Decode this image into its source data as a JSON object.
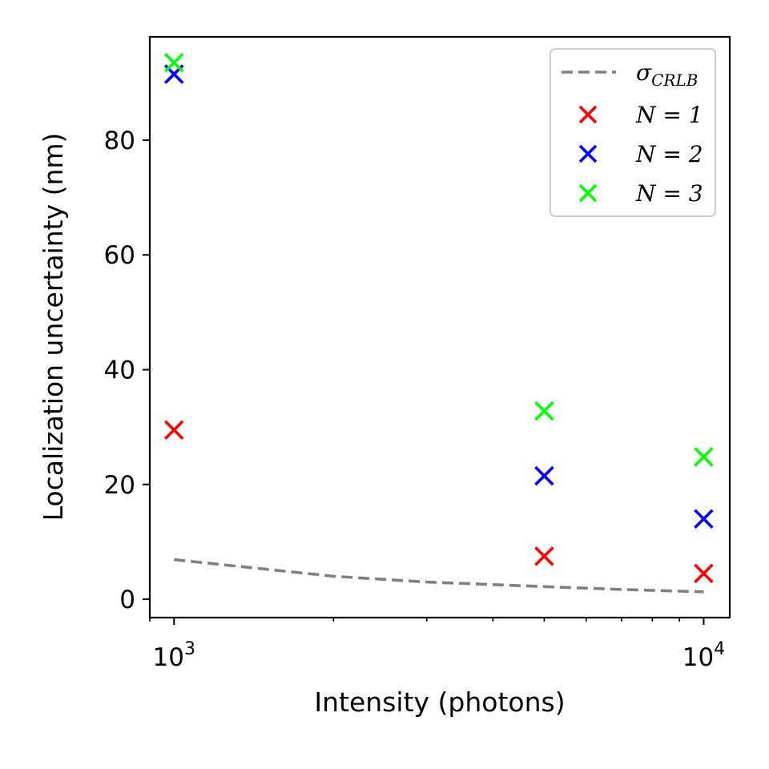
{
  "chart_data": {
    "type": "scatter",
    "xlabel": "Intensity (photons)",
    "ylabel": "Localization uncertainty (nm)",
    "x_scale": "log",
    "xlim": [
      900,
      11200
    ],
    "ylim": [
      -3.2,
      98
    ],
    "x_ticks": [
      {
        "value": 1000,
        "base": "10",
        "exp": "3"
      },
      {
        "value": 10000,
        "base": "10",
        "exp": "4"
      }
    ],
    "y_ticks": [
      {
        "value": 0,
        "label": "0"
      },
      {
        "value": 20,
        "label": "20"
      },
      {
        "value": 40,
        "label": "40"
      },
      {
        "value": 60,
        "label": "60"
      },
      {
        "value": 80,
        "label": "80"
      }
    ],
    "grid": false,
    "legend_position": "top-right",
    "curve": {
      "name": "σ",
      "name_sub": "CRLB",
      "color": "#808080",
      "style": "dashed",
      "x": [
        1000,
        2000,
        3000,
        5000,
        7000,
        10000
      ],
      "y": [
        6.9,
        4.0,
        3.0,
        2.2,
        1.7,
        1.3
      ]
    },
    "series": [
      {
        "name": "N = 1",
        "color": "#ff0000",
        "marker": "x",
        "x": [
          1000,
          5000,
          10000
        ],
        "y": [
          29.5,
          7.5,
          4.5
        ]
      },
      {
        "name": "N = 2",
        "color": "#0000ff",
        "marker": "x",
        "x": [
          1000,
          5000,
          10000
        ],
        "y": [
          91.5,
          21.5,
          14.0
        ]
      },
      {
        "name": "N = 3",
        "color": "#00ff00",
        "marker": "x",
        "x": [
          1000,
          5000,
          10000
        ],
        "y": [
          93.5,
          32.8,
          24.8
        ]
      }
    ]
  }
}
